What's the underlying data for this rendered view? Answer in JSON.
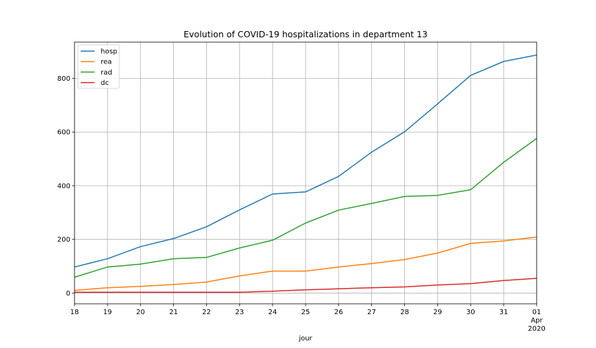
{
  "chart_data": {
    "type": "line",
    "title": "Evolution of COVID-19 hospitalizations in department 13",
    "xlabel": "jour",
    "ylabel": "",
    "x": [
      "18",
      "19",
      "20",
      "21",
      "22",
      "23",
      "24",
      "25",
      "26",
      "27",
      "28",
      "29",
      "30",
      "31",
      "01"
    ],
    "x_extra_labels": {
      "sub1": "Apr",
      "sub2": "2020"
    },
    "ylim": [
      -40,
      935
    ],
    "yticks": [
      0,
      200,
      400,
      600,
      800
    ],
    "grid": true,
    "legend_position": "top-left",
    "series": [
      {
        "name": "hosp",
        "color": "#1f77b4",
        "values": [
          97,
          128,
          173,
          203,
          247,
          310,
          369,
          377,
          435,
          525,
          601,
          705,
          811,
          863,
          887
        ]
      },
      {
        "name": "rea",
        "color": "#ff7f0e",
        "values": [
          10,
          20,
          25,
          32,
          41,
          64,
          82,
          82,
          97,
          110,
          125,
          149,
          185,
          194,
          209
        ]
      },
      {
        "name": "rad",
        "color": "#2ca02c",
        "values": [
          59,
          97,
          108,
          128,
          133,
          168,
          197,
          261,
          309,
          334,
          360,
          364,
          385,
          487,
          576
        ]
      },
      {
        "name": "dc",
        "color": "#d62728",
        "values": [
          3,
          3,
          3,
          3,
          3,
          3,
          7,
          12,
          16,
          20,
          23,
          30,
          35,
          47,
          55
        ]
      }
    ]
  }
}
